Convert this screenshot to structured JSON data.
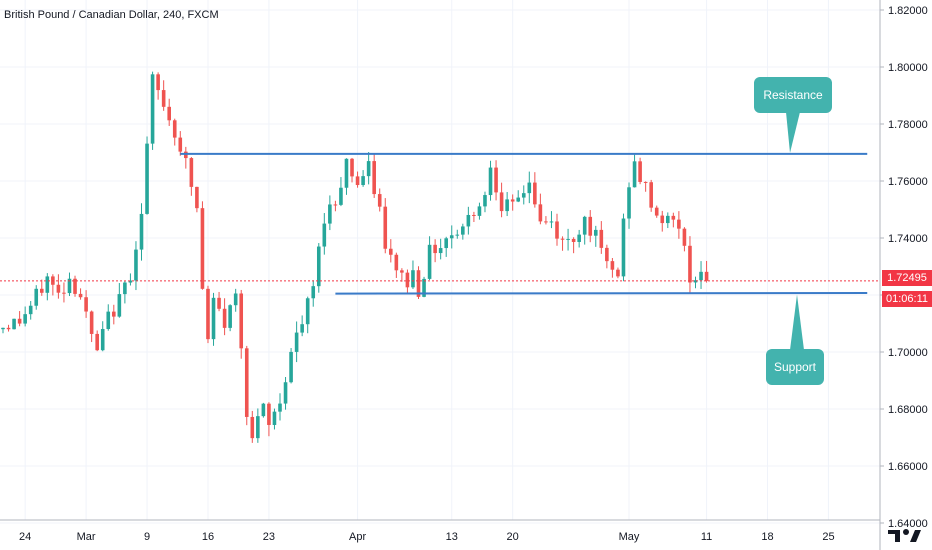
{
  "header": {
    "title": "British Pound / Canadian Dollar, 240, FXCM"
  },
  "annotations": {
    "resistance_label": "Resistance",
    "support_label": "Support",
    "callout_color": "#43b3ae"
  },
  "price_tag": {
    "last_price": "1.72495",
    "countdown": "01:06:11",
    "color": "#f23645"
  },
  "colors": {
    "up": "#26a69a",
    "down": "#ef5350",
    "line": "#2962ff",
    "sr_line": "#3a7bc8"
  },
  "chart_data": {
    "type": "candlestick",
    "symbol": "GBPCAD",
    "interval": "240",
    "y_ticks": [
      "1.82000",
      "1.80000",
      "1.78000",
      "1.76000",
      "1.74000",
      "1.72000",
      "1.70000",
      "1.68000",
      "1.66000",
      "1.64000"
    ],
    "ylim": [
      1.64,
      1.822
    ],
    "x_ticks": [
      {
        "label": "24",
        "idx": 4
      },
      {
        "label": "Mar",
        "idx": 15
      },
      {
        "label": "9",
        "idx": 26
      },
      {
        "label": "16",
        "idx": 37
      },
      {
        "label": "23",
        "idx": 48
      },
      {
        "label": "Apr",
        "idx": 64
      },
      {
        "label": "13",
        "idx": 81
      },
      {
        "label": "20",
        "idx": 92
      },
      {
        "label": "May",
        "idx": 113
      },
      {
        "label": "11",
        "idx": 127
      },
      {
        "label": "18",
        "idx": 138
      },
      {
        "label": "25",
        "idx": 149
      }
    ],
    "bars_total": 156,
    "close_path": [
      [
        0,
        1.709
      ],
      [
        3,
        1.711
      ],
      [
        5,
        1.716
      ],
      [
        8,
        1.726
      ],
      [
        10,
        1.72
      ],
      [
        12,
        1.726
      ],
      [
        14,
        1.72
      ],
      [
        16,
        1.705
      ],
      [
        17,
        1.7
      ],
      [
        19,
        1.712
      ],
      [
        21,
        1.718
      ],
      [
        23,
        1.728
      ],
      [
        25,
        1.748
      ],
      [
        26,
        1.772
      ],
      [
        27,
        1.795
      ],
      [
        29,
        1.787
      ],
      [
        31,
        1.777
      ],
      [
        32,
        1.772
      ],
      [
        33,
        1.766
      ],
      [
        35,
        1.75
      ],
      [
        36,
        1.722
      ],
      [
        37,
        1.703
      ],
      [
        38,
        1.718
      ],
      [
        40,
        1.71
      ],
      [
        42,
        1.72
      ],
      [
        43,
        1.703
      ],
      [
        44,
        1.68
      ],
      [
        45,
        1.67
      ],
      [
        47,
        1.68
      ],
      [
        48,
        1.674
      ],
      [
        50,
        1.683
      ],
      [
        52,
        1.7
      ],
      [
        54,
        1.71
      ],
      [
        56,
        1.723
      ],
      [
        58,
        1.748
      ],
      [
        60,
        1.753
      ],
      [
        62,
        1.767
      ],
      [
        64,
        1.759
      ],
      [
        66,
        1.764
      ],
      [
        68,
        1.75
      ],
      [
        69,
        1.735
      ],
      [
        71,
        1.73
      ],
      [
        73,
        1.724
      ],
      [
        74,
        1.728
      ],
      [
        75,
        1.722
      ],
      [
        77,
        1.735
      ],
      [
        79,
        1.738
      ],
      [
        81,
        1.742
      ],
      [
        83,
        1.744
      ],
      [
        85,
        1.75
      ],
      [
        87,
        1.755
      ],
      [
        88,
        1.766
      ],
      [
        90,
        1.752
      ],
      [
        92,
        1.75
      ],
      [
        94,
        1.757
      ],
      [
        95,
        1.76
      ],
      [
        97,
        1.745
      ],
      [
        99,
        1.745
      ],
      [
        101,
        1.738
      ],
      [
        103,
        1.74
      ],
      [
        105,
        1.747
      ],
      [
        107,
        1.74
      ],
      [
        109,
        1.73
      ],
      [
        111,
        1.727
      ],
      [
        112,
        1.745
      ],
      [
        113,
        1.76
      ],
      [
        114,
        1.765
      ],
      [
        116,
        1.757
      ],
      [
        118,
        1.748
      ],
      [
        120,
        1.746
      ],
      [
        122,
        1.745
      ],
      [
        123,
        1.735
      ],
      [
        124,
        1.727
      ],
      [
        126,
        1.727
      ],
      [
        127,
        1.725
      ]
    ],
    "resistance": {
      "price": 1.7695,
      "from_idx": 32,
      "to_idx": 156
    },
    "support": {
      "price": 1.7205,
      "price_end": 1.7207,
      "from_idx": 60,
      "to_idx": 156
    },
    "last_price": 1.72495
  }
}
